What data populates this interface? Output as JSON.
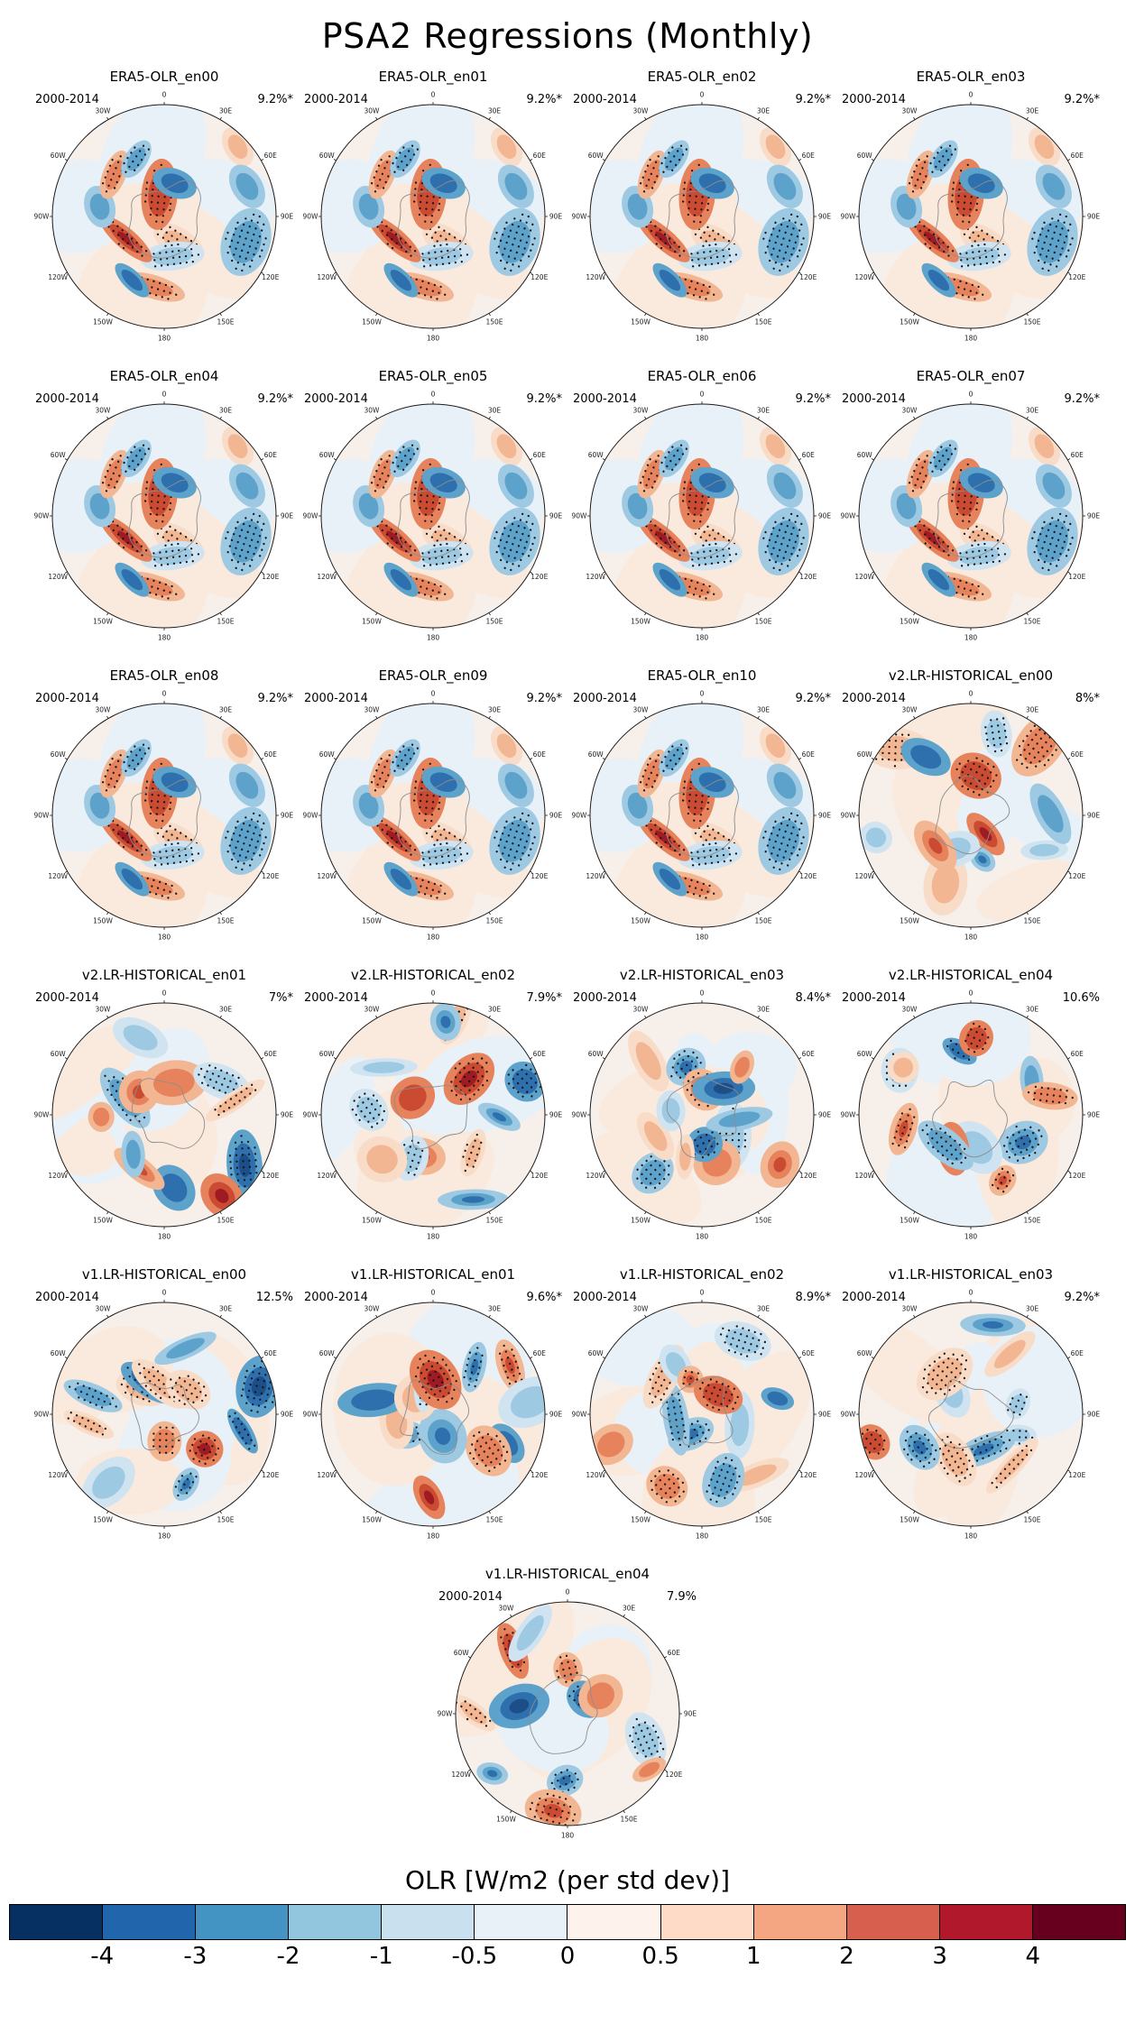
{
  "chart_data": {
    "type": "heatmap",
    "title": "PSA2 Regressions (Monthly)",
    "projection": "south polar stereographic",
    "period": "2000-2014",
    "n_panels": 21,
    "layout": {
      "columns": 4,
      "rows": 6,
      "last_row_centered": true,
      "legend_position": "bottom"
    },
    "lon_tick_labels": [
      "0",
      "30E",
      "60E",
      "90E",
      "120E",
      "150E",
      "180",
      "150W",
      "120W",
      "90W",
      "60W",
      "30W"
    ],
    "panels": [
      {
        "title": "ERA5-OLR_en00",
        "period": "2000-2014",
        "variance": "9.2%*"
      },
      {
        "title": "ERA5-OLR_en01",
        "period": "2000-2014",
        "variance": "9.2%*"
      },
      {
        "title": "ERA5-OLR_en02",
        "period": "2000-2014",
        "variance": "9.2%*"
      },
      {
        "title": "ERA5-OLR_en03",
        "period": "2000-2014",
        "variance": "9.2%*"
      },
      {
        "title": "ERA5-OLR_en04",
        "period": "2000-2014",
        "variance": "9.2%*"
      },
      {
        "title": "ERA5-OLR_en05",
        "period": "2000-2014",
        "variance": "9.2%*"
      },
      {
        "title": "ERA5-OLR_en06",
        "period": "2000-2014",
        "variance": "9.2%*"
      },
      {
        "title": "ERA5-OLR_en07",
        "period": "2000-2014",
        "variance": "9.2%*"
      },
      {
        "title": "ERA5-OLR_en08",
        "period": "2000-2014",
        "variance": "9.2%*"
      },
      {
        "title": "ERA5-OLR_en09",
        "period": "2000-2014",
        "variance": "9.2%*"
      },
      {
        "title": "ERA5-OLR_en10",
        "period": "2000-2014",
        "variance": "9.2%*"
      },
      {
        "title": "v2.LR-HISTORICAL_en00",
        "period": "2000-2014",
        "variance": "8%*"
      },
      {
        "title": "v2.LR-HISTORICAL_en01",
        "period": "2000-2014",
        "variance": "7%*"
      },
      {
        "title": "v2.LR-HISTORICAL_en02",
        "period": "2000-2014",
        "variance": "7.9%*"
      },
      {
        "title": "v2.LR-HISTORICAL_en03",
        "period": "2000-2014",
        "variance": "8.4%*"
      },
      {
        "title": "v2.LR-HISTORICAL_en04",
        "period": "2000-2014",
        "variance": "10.6%"
      },
      {
        "title": "v1.LR-HISTORICAL_en00",
        "period": "2000-2014",
        "variance": "12.5%"
      },
      {
        "title": "v1.LR-HISTORICAL_en01",
        "period": "2000-2014",
        "variance": "9.6%*"
      },
      {
        "title": "v1.LR-HISTORICAL_en02",
        "period": "2000-2014",
        "variance": "8.9%*"
      },
      {
        "title": "v1.LR-HISTORICAL_en03",
        "period": "2000-2014",
        "variance": "9.2%*"
      },
      {
        "title": "v1.LR-HISTORICAL_en04",
        "period": "2000-2014",
        "variance": "7.9%"
      }
    ],
    "colorbar": {
      "label": "OLR [W/m2 (per std dev)]",
      "tick_labels": [
        "-4",
        "-3",
        "-2",
        "-1",
        "-0.5",
        "0",
        "0.5",
        "1",
        "2",
        "3",
        "4"
      ],
      "tick_values": [
        -4,
        -3,
        -2,
        -1,
        -0.5,
        0,
        0.5,
        1,
        2,
        3,
        4
      ],
      "colors": [
        "#053061",
        "#2166ac",
        "#4393c3",
        "#92c5de",
        "#c9e0ef",
        "#e9f1f8",
        "#fdf3ec",
        "#fddbc7",
        "#f4a582",
        "#d6604d",
        "#b2182b",
        "#67001f"
      ]
    }
  }
}
